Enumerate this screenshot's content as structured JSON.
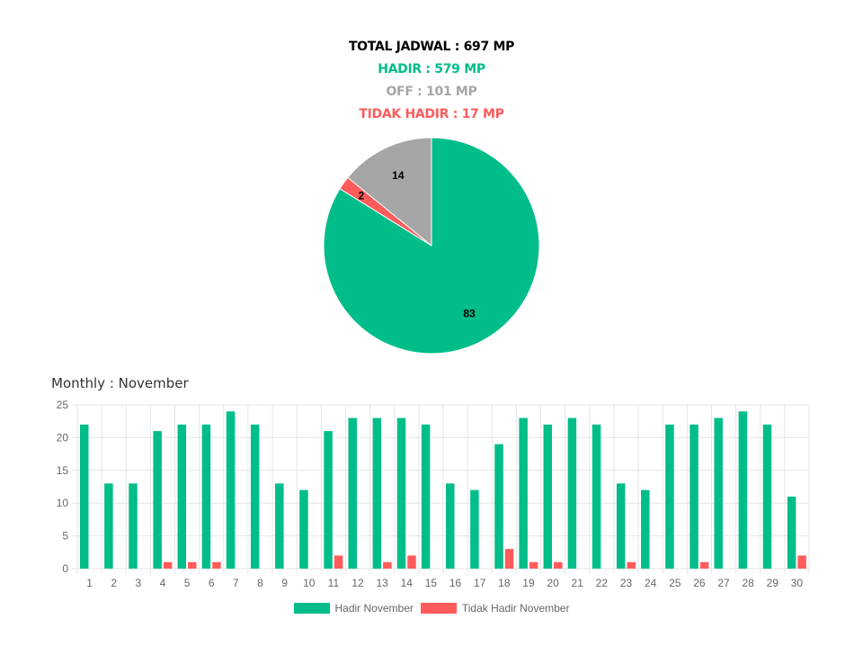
{
  "summary": {
    "total": "TOTAL JADWAL : 697 MP",
    "hadir": "HADIR : 579 MP",
    "off": "OFF : 101 MP",
    "tidak_hadir": "TIDAK HADIR : 17 MP"
  },
  "colors": {
    "total": "#000000",
    "hadir": "#00BD8A",
    "off": "#A6A6A6",
    "tidak_hadir": "#FF5B5B",
    "grid": "#E6E6E6",
    "axis_text": "#666666"
  },
  "section_title": "Monthly : November",
  "chart_data": [
    {
      "type": "pie",
      "slices": [
        {
          "label": "Hadir",
          "value": 83,
          "color": "#00BD8A"
        },
        {
          "label": "Tidak Hadir",
          "value": 2,
          "color": "#FF5B5B"
        },
        {
          "label": "Off",
          "value": 14,
          "color": "#A6A6A6"
        }
      ]
    },
    {
      "type": "bar",
      "title": "Monthly : November",
      "categories": [
        "1",
        "2",
        "3",
        "4",
        "5",
        "6",
        "7",
        "8",
        "9",
        "10",
        "11",
        "12",
        "13",
        "14",
        "15",
        "16",
        "17",
        "18",
        "19",
        "20",
        "21",
        "22",
        "23",
        "24",
        "25",
        "26",
        "27",
        "28",
        "29",
        "30"
      ],
      "series": [
        {
          "name": "Hadir November",
          "color": "#00BD8A",
          "values": [
            22,
            13,
            13,
            21,
            22,
            22,
            24,
            22,
            13,
            12,
            21,
            23,
            23,
            23,
            22,
            13,
            12,
            19,
            23,
            22,
            23,
            22,
            13,
            12,
            22,
            22,
            23,
            24,
            22,
            11
          ]
        },
        {
          "name": "Tidak Hadir November",
          "color": "#FF5B5B",
          "values": [
            0,
            0,
            0,
            1,
            1,
            1,
            0,
            0,
            0,
            0,
            2,
            0,
            1,
            2,
            0,
            0,
            0,
            3,
            1,
            1,
            0,
            0,
            1,
            0,
            0,
            1,
            0,
            0,
            0,
            2
          ]
        }
      ],
      "ylim": [
        0,
        25
      ],
      "yticks": [
        0,
        5,
        10,
        15,
        20,
        25
      ],
      "grid": true,
      "legend": "bottom"
    }
  ]
}
